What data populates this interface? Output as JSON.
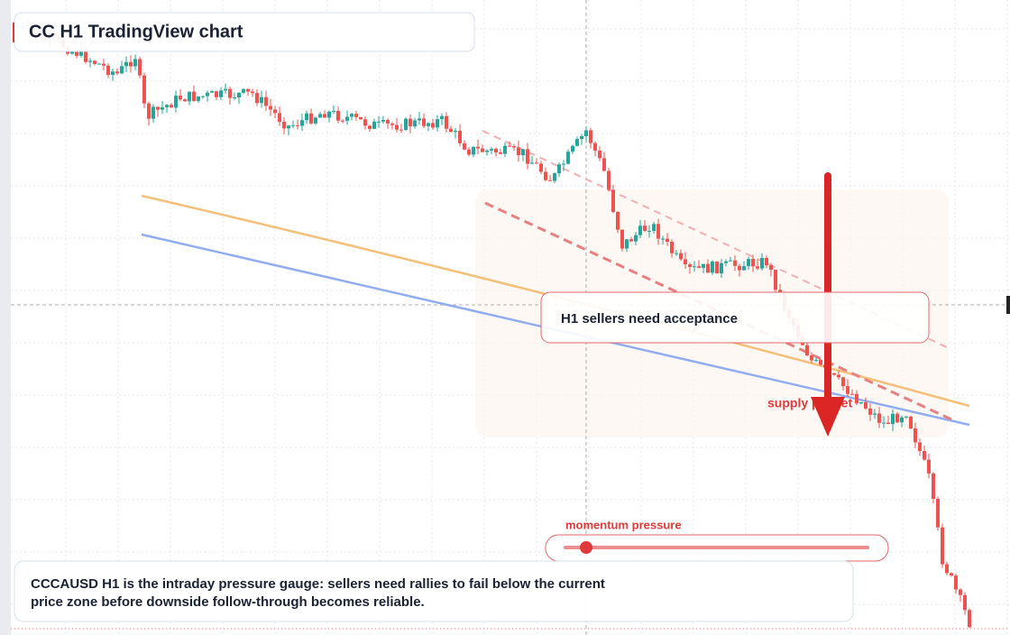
{
  "header": {
    "title": "CC H1 TradingView chart"
  },
  "annotations": {
    "note": "H1 sellers need acceptance",
    "zone_label": "supply pocket",
    "gauge_label": "momentum pressure"
  },
  "caption": {
    "lines": [
      "CCCAUSD H1 is the intraday pressure gauge: sellers need rallies to fail below the current",
      "price zone before downside follow-through becomes reliable."
    ]
  }
}
